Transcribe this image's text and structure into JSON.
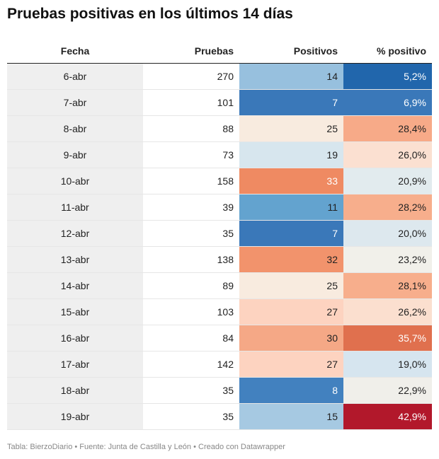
{
  "title": "Pruebas positivas en los últimos 14 días",
  "footer": "Tabla: BierzoDiario • Fuente: Junta de Castilla y León • Creado con Datawrapper",
  "chart_data": {
    "type": "table",
    "columns": [
      "Fecha",
      "Pruebas",
      "Positivos",
      "% positivo"
    ],
    "rows": [
      {
        "fecha": "6-abr",
        "pruebas": "270",
        "positivos": "14",
        "pct": "5,2%",
        "pos_color": "#97c0de",
        "pos_text": "#222222",
        "pct_color": "#2166ac",
        "pct_text": "#ffffff"
      },
      {
        "fecha": "7-abr",
        "pruebas": "101",
        "positivos": "7",
        "pct": "6,9%",
        "pos_color": "#3a78b9",
        "pos_text": "#ffffff",
        "pct_color": "#3a78b9",
        "pct_text": "#ffffff"
      },
      {
        "fecha": "8-abr",
        "pruebas": "88",
        "positivos": "25",
        "pct": "28,4%",
        "pos_color": "#f8ebdf",
        "pos_text": "#222222",
        "pct_color": "#f7aa88",
        "pct_text": "#222222"
      },
      {
        "fecha": "9-abr",
        "pruebas": "73",
        "positivos": "19",
        "pct": "26,0%",
        "pos_color": "#d7e6ee",
        "pos_text": "#222222",
        "pct_color": "#fbe0d1",
        "pct_text": "#222222"
      },
      {
        "fecha": "10-abr",
        "pruebas": "158",
        "positivos": "33",
        "pct": "20,9%",
        "pos_color": "#ef8a62",
        "pos_text": "#ffffff",
        "pct_color": "#e2ebee",
        "pct_text": "#222222"
      },
      {
        "fecha": "11-abr",
        "pruebas": "39",
        "positivos": "11",
        "pct": "28,2%",
        "pos_color": "#63a3cf",
        "pos_text": "#222222",
        "pct_color": "#f7ae8c",
        "pct_text": "#222222"
      },
      {
        "fecha": "12-abr",
        "pruebas": "35",
        "positivos": "7",
        "pct": "20,0%",
        "pos_color": "#3a78b9",
        "pos_text": "#ffffff",
        "pct_color": "#dde8ee",
        "pct_text": "#222222"
      },
      {
        "fecha": "13-abr",
        "pruebas": "138",
        "positivos": "32",
        "pct": "23,2%",
        "pos_color": "#f2936c",
        "pos_text": "#222222",
        "pct_color": "#f1f0ea",
        "pct_text": "#222222"
      },
      {
        "fecha": "14-abr",
        "pruebas": "89",
        "positivos": "25",
        "pct": "28,1%",
        "pos_color": "#f8ebdf",
        "pos_text": "#222222",
        "pct_color": "#f7ae8c",
        "pct_text": "#222222"
      },
      {
        "fecha": "15-abr",
        "pruebas": "103",
        "positivos": "27",
        "pct": "26,2%",
        "pos_color": "#fdd3c0",
        "pos_text": "#222222",
        "pct_color": "#fbdfcf",
        "pct_text": "#222222"
      },
      {
        "fecha": "16-abr",
        "pruebas": "84",
        "positivos": "30",
        "pct": "35,7%",
        "pos_color": "#f5a886",
        "pos_text": "#222222",
        "pct_color": "#e0704e",
        "pct_text": "#ffffff"
      },
      {
        "fecha": "17-abr",
        "pruebas": "142",
        "positivos": "27",
        "pct": "19,0%",
        "pos_color": "#fdd3c0",
        "pos_text": "#222222",
        "pct_color": "#d6e5ef",
        "pct_text": "#222222"
      },
      {
        "fecha": "18-abr",
        "pruebas": "35",
        "positivos": "8",
        "pct": "22,9%",
        "pos_color": "#4281bf",
        "pos_text": "#ffffff",
        "pct_color": "#f0efea",
        "pct_text": "#222222"
      },
      {
        "fecha": "19-abr",
        "pruebas": "35",
        "positivos": "15",
        "pct": "42,9%",
        "pos_color": "#a6c9e2",
        "pos_text": "#222222",
        "pct_color": "#b2182b",
        "pct_text": "#ffffff"
      }
    ]
  }
}
